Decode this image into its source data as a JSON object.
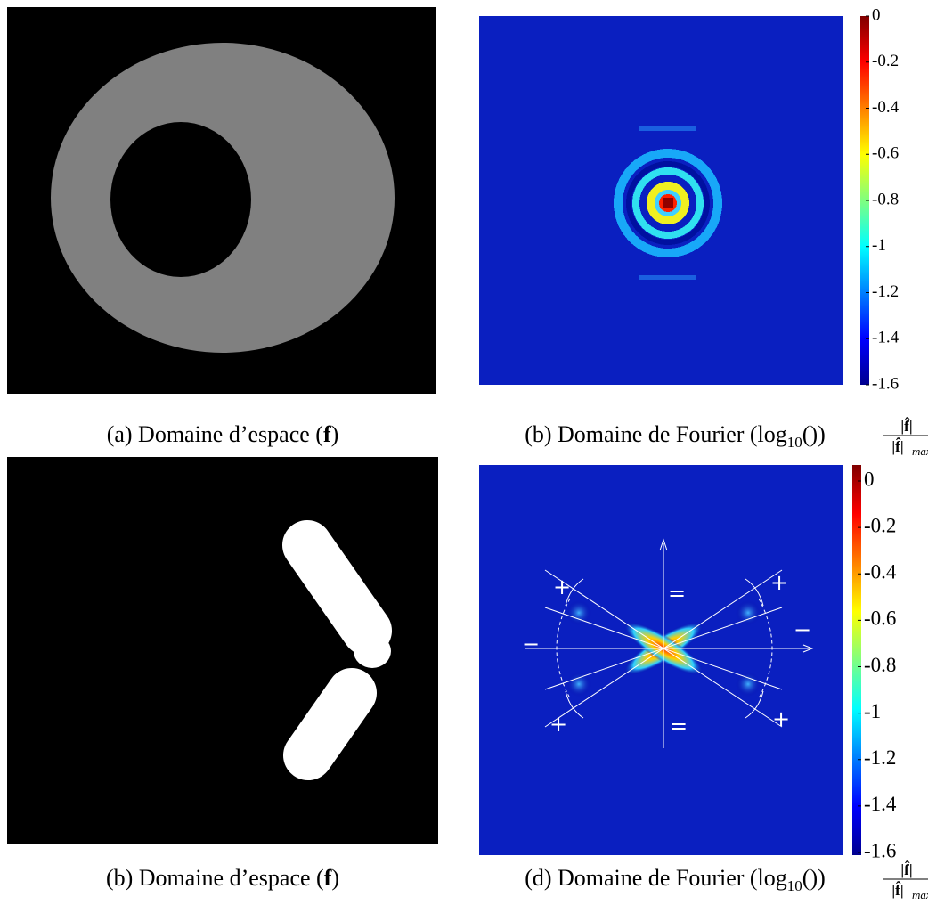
{
  "panels": [
    {
      "caption": {
        "label": "(a) Domaine d’espace (",
        "bold": "f",
        "close": ")"
      }
    },
    {
      "caption": {
        "label": "(b) Domaine de Fourier (log",
        "sub": "10",
        "open": "(",
        "numerator": "|f̂|",
        "denominator": "|f̂|",
        "den_sub": "max",
        "close": "))"
      },
      "colorbar": {
        "lim": [
          -1.6,
          0
        ],
        "ticks": [
          0,
          -0.2,
          -0.4,
          -0.6,
          -0.8,
          -1,
          -1.2,
          -1.4,
          -1.6
        ]
      }
    },
    {
      "caption": {
        "label": "(b) Domaine d’espace (",
        "bold": "f",
        "close": ")"
      }
    },
    {
      "caption": {
        "label": "(d) Domaine de Fourier (log",
        "sub": "10",
        "open": "(",
        "numerator": "|f̂|",
        "denominator": "|f̂|",
        "den_sub": "max",
        "close": "))"
      },
      "colorbar": {
        "lim": [
          -1.6,
          0
        ],
        "ticks": [
          0,
          -0.2,
          -0.4,
          -0.6,
          -0.8,
          -1,
          -1.2,
          -1.4,
          -1.6
        ]
      },
      "annotations": [
        "+",
        "+",
        "+",
        "+",
        "−",
        "−",
        "=",
        "="
      ]
    }
  ]
}
